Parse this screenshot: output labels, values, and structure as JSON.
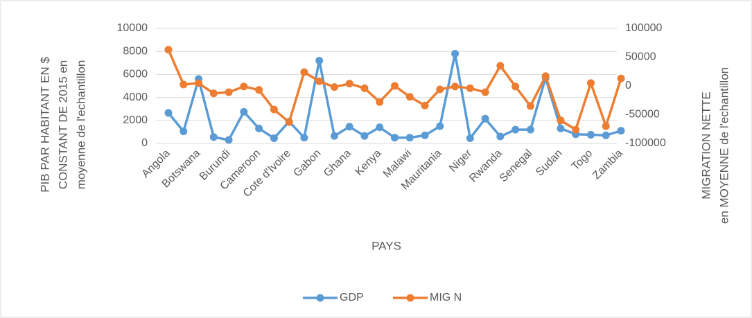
{
  "chart_data": {
    "type": "line",
    "xlabel": "PAYS",
    "ylabel": [
      "PIB PAR HABITANT EN $",
      "CONSTANT DE 2015 en",
      "moyenne de l'echantillon"
    ],
    "y2label": [
      "MIGRATION NETTE",
      "en MOYENNE de l'echantillon"
    ],
    "categories": [
      "Angola",
      null,
      "Botswana",
      null,
      "Burundi",
      null,
      "Cameroon",
      null,
      "Cote d'Ivoire",
      null,
      "Gabon",
      null,
      "Ghana",
      null,
      "Kenya",
      null,
      "Malawi",
      null,
      "Mauritania",
      null,
      "Niger",
      null,
      "Rwanda",
      null,
      "Senegal",
      null,
      "Sudan",
      null,
      "Togo",
      null,
      "Zambia"
    ],
    "series": [
      {
        "name": "GDP",
        "color": "#5b9bd5",
        "values": [
          2650,
          1050,
          5600,
          550,
          300,
          2750,
          1300,
          450,
          1900,
          500,
          7200,
          650,
          1450,
          650,
          1400,
          500,
          500,
          700,
          1500,
          7800,
          450,
          2150,
          600,
          1200,
          1200,
          5700,
          1300,
          800,
          750,
          700,
          1100
        ]
      },
      {
        "name": "MIG N",
        "color": "#ed7d31",
        "axis": "y2",
        "values": [
          63000,
          2400,
          4800,
          -13000,
          -11000,
          -1000,
          -7000,
          -41000,
          -63000,
          24000,
          8000,
          -2000,
          4000,
          -4000,
          -28000,
          0,
          -19000,
          -34000,
          -6000,
          -1000,
          -4000,
          -11000,
          35000,
          -1000,
          -35000,
          17000,
          -60000,
          -76000,
          5000,
          -70000,
          13000
        ]
      }
    ],
    "ylim": [
      0,
      10000
    ],
    "yticks": [
      0,
      2000,
      4000,
      6000,
      8000,
      10000
    ],
    "y2lim": [
      -100000,
      100000
    ],
    "y2ticks": [
      -100000,
      -50000,
      0,
      50000,
      100000
    ],
    "grid": true,
    "legend": "bottom"
  }
}
